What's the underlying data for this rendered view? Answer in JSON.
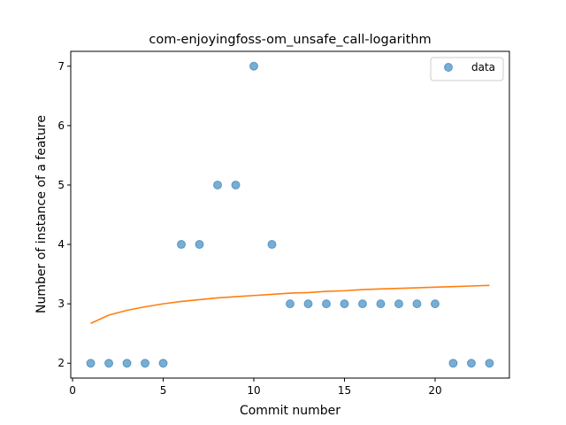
{
  "chart_data": {
    "type": "scatter",
    "title": "com-enjoyingfoss-om_unsafe_call-logarithm",
    "xlabel": "Commit number",
    "ylabel": "Number of instance of a feature",
    "xlim": [
      -0.1,
      24.1
    ],
    "ylim": [
      1.75,
      7.25
    ],
    "xticks": [
      0,
      5,
      10,
      15,
      20
    ],
    "yticks": [
      2,
      3,
      4,
      5,
      6,
      7
    ],
    "grid": false,
    "legend_position": "top-right",
    "series": [
      {
        "name": "data",
        "kind": "scatter",
        "color": "#1f77b4",
        "x": [
          1,
          2,
          3,
          4,
          5,
          6,
          7,
          8,
          9,
          10,
          11,
          12,
          13,
          14,
          15,
          16,
          17,
          18,
          19,
          20,
          21,
          22,
          23
        ],
        "y": [
          2,
          2,
          2,
          2,
          2,
          4,
          4,
          5,
          5,
          7,
          4,
          3,
          3,
          3,
          3,
          3,
          3,
          3,
          3,
          3,
          2,
          2,
          2
        ]
      },
      {
        "kind": "line",
        "color": "#ff7f0e",
        "x": [
          1,
          2,
          3,
          4,
          5,
          6,
          7,
          8,
          9,
          10,
          11,
          12,
          13,
          14,
          15,
          16,
          17,
          18,
          19,
          20,
          21,
          22,
          23
        ],
        "y": [
          2.67,
          2.81,
          2.89,
          2.95,
          3.0,
          3.04,
          3.07,
          3.1,
          3.12,
          3.14,
          3.16,
          3.18,
          3.19,
          3.21,
          3.22,
          3.24,
          3.25,
          3.26,
          3.27,
          3.28,
          3.29,
          3.3,
          3.31
        ]
      }
    ]
  }
}
